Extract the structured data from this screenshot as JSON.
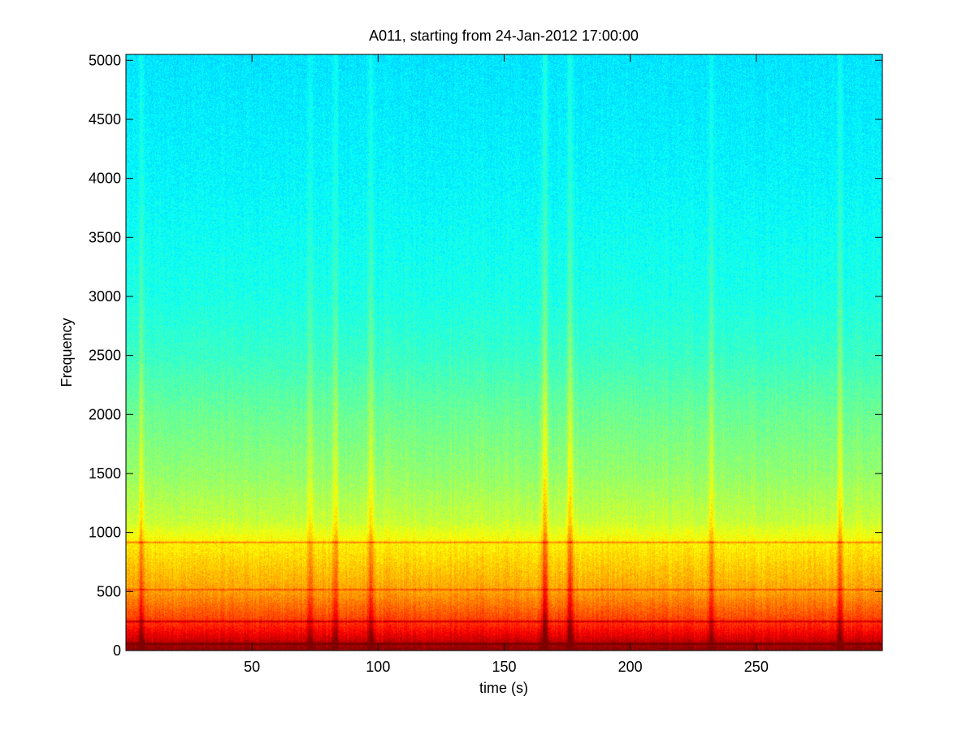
{
  "chart_data": {
    "type": "heatmap",
    "subtype": "spectrogram",
    "title": "A011, starting from 24-Jan-2012 17:00:00",
    "xlabel": "time (s)",
    "ylabel": "Frequency",
    "xlim": [
      0,
      300
    ],
    "ylim": [
      0,
      5050
    ],
    "xticks": [
      50,
      100,
      150,
      200,
      250
    ],
    "yticks": [
      0,
      500,
      1000,
      1500,
      2000,
      2500,
      3000,
      3500,
      4000,
      4500,
      5000
    ],
    "grid": false,
    "colormap": "jet",
    "colors": {
      "low": "#40f0c8",
      "mid": "#f0f000",
      "high": "#e00000"
    },
    "power_profile_by_frequency": [
      {
        "freq": 0,
        "level": 1.0
      },
      {
        "freq": 100,
        "level": 0.92
      },
      {
        "freq": 250,
        "level": 0.82
      },
      {
        "freq": 500,
        "level": 0.72
      },
      {
        "freq": 900,
        "level": 0.64
      },
      {
        "freq": 1100,
        "level": 0.57
      },
      {
        "freq": 1500,
        "level": 0.52
      },
      {
        "freq": 2000,
        "level": 0.48
      },
      {
        "freq": 2500,
        "level": 0.43
      },
      {
        "freq": 3000,
        "level": 0.4
      },
      {
        "freq": 4000,
        "level": 0.37
      },
      {
        "freq": 5000,
        "level": 0.35
      }
    ],
    "broadband_events": [
      {
        "time": 6,
        "strength": 0.1
      },
      {
        "time": 73,
        "strength": 0.07
      },
      {
        "time": 83,
        "strength": 0.09
      },
      {
        "time": 97,
        "strength": 0.1
      },
      {
        "time": 166,
        "strength": 0.16
      },
      {
        "time": 176,
        "strength": 0.14
      },
      {
        "time": 232,
        "strength": 0.1
      },
      {
        "time": 283,
        "strength": 0.12
      }
    ],
    "tonal_lines": [
      {
        "freq": 920,
        "strength": 0.12
      },
      {
        "freq": 520,
        "strength": 0.08
      },
      {
        "freq": 250,
        "strength": 0.12
      },
      {
        "freq": 60,
        "strength": 0.15
      }
    ]
  }
}
